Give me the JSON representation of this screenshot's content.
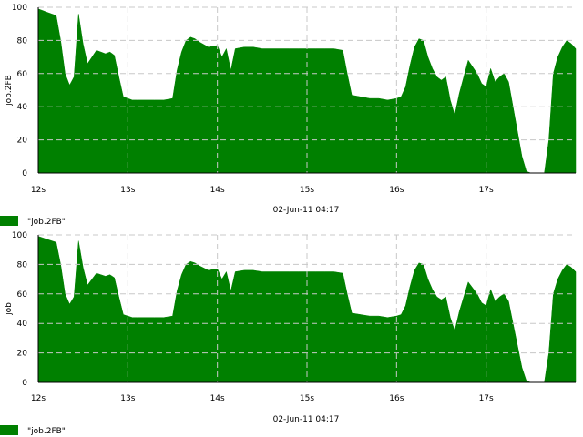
{
  "chart_data": [
    {
      "type": "area",
      "ylabel": "job.2FB",
      "xlabel": "02-Jun-11 04:17",
      "legend": "\"job.2FB\"",
      "legend_placement": "bottom-left",
      "grid": true,
      "color": "#008000",
      "ylim": [
        0,
        100
      ],
      "yticks": [
        "0",
        "20",
        "40",
        "60",
        "80",
        "100"
      ],
      "xlim": [
        12.0,
        18.0
      ],
      "xticks": [
        {
          "x": 12,
          "label": "12s"
        },
        {
          "x": 13,
          "label": "13s"
        },
        {
          "x": 14,
          "label": "14s"
        },
        {
          "x": 15,
          "label": "15s"
        },
        {
          "x": 16,
          "label": "16s"
        },
        {
          "x": 17,
          "label": "17s"
        }
      ],
      "series": [
        {
          "x": [
            12.0,
            12.05,
            12.1,
            12.15,
            12.2,
            12.25,
            12.3,
            12.35,
            12.4,
            12.45,
            12.5,
            12.55,
            12.6,
            12.65,
            12.7,
            12.75,
            12.8,
            12.85,
            12.9,
            12.95,
            13.0,
            13.05,
            13.1,
            13.2,
            13.3,
            13.4,
            13.5,
            13.55,
            13.6,
            13.65,
            13.7,
            13.75,
            13.8,
            13.9,
            14.0,
            14.05,
            14.1,
            14.15,
            14.2,
            14.3,
            14.4,
            14.5,
            14.6,
            14.7,
            14.8,
            14.9,
            15.0,
            15.1,
            15.2,
            15.3,
            15.4,
            15.45,
            15.5,
            15.6,
            15.7,
            15.8,
            15.9,
            16.0,
            16.05,
            16.1,
            16.15,
            16.2,
            16.25,
            16.3,
            16.35,
            16.4,
            16.45,
            16.5,
            16.55,
            16.6,
            16.65,
            16.7,
            16.75,
            16.8,
            16.85,
            16.9,
            16.95,
            17.0,
            17.05,
            17.1,
            17.15,
            17.2,
            17.25,
            17.3,
            17.35,
            17.4,
            17.45,
            17.5,
            17.55,
            17.6,
            17.65,
            17.7,
            17.75,
            17.8,
            17.85,
            17.9,
            17.95,
            18.0
          ],
          "y": [
            99,
            98,
            97,
            96,
            95,
            80,
            60,
            53,
            58,
            96,
            78,
            66,
            70,
            74,
            73,
            72,
            73,
            71,
            58,
            46,
            45,
            44,
            44,
            44,
            44,
            44,
            45,
            62,
            73,
            80,
            82,
            81,
            79,
            76,
            77,
            70,
            75,
            62,
            75,
            76,
            76,
            75,
            75,
            75,
            75,
            75,
            75,
            75,
            75,
            75,
            74,
            60,
            47,
            46,
            45,
            45,
            44,
            45,
            46,
            52,
            65,
            76,
            81,
            80,
            70,
            63,
            58,
            56,
            58,
            44,
            35,
            48,
            58,
            68,
            64,
            60,
            54,
            52,
            63,
            55,
            58,
            60,
            55,
            40,
            25,
            10,
            1,
            0,
            0,
            0,
            0,
            20,
            60,
            70,
            76,
            80,
            78,
            75
          ]
        }
      ]
    },
    {
      "type": "area",
      "ylabel": "job",
      "xlabel": "02-Jun-11 04:17",
      "legend": "\"job.2FB\"",
      "legend_placement": "bottom-left",
      "grid": true,
      "color": "#008000",
      "ylim": [
        0,
        100
      ],
      "yticks": [
        "0",
        "20",
        "40",
        "60",
        "80",
        "100"
      ],
      "xlim": [
        12.0,
        18.0
      ],
      "xticks": [
        {
          "x": 12,
          "label": "12s"
        },
        {
          "x": 13,
          "label": "13s"
        },
        {
          "x": 14,
          "label": "14s"
        },
        {
          "x": 15,
          "label": "15s"
        },
        {
          "x": 16,
          "label": "16s"
        },
        {
          "x": 17,
          "label": "17s"
        }
      ],
      "series": [
        {
          "x": [
            12.0,
            12.05,
            12.1,
            12.15,
            12.2,
            12.25,
            12.3,
            12.35,
            12.4,
            12.45,
            12.5,
            12.55,
            12.6,
            12.65,
            12.7,
            12.75,
            12.8,
            12.85,
            12.9,
            12.95,
            13.0,
            13.05,
            13.1,
            13.2,
            13.3,
            13.4,
            13.5,
            13.55,
            13.6,
            13.65,
            13.7,
            13.75,
            13.8,
            13.9,
            14.0,
            14.05,
            14.1,
            14.15,
            14.2,
            14.3,
            14.4,
            14.5,
            14.6,
            14.7,
            14.8,
            14.9,
            15.0,
            15.1,
            15.2,
            15.3,
            15.4,
            15.45,
            15.5,
            15.6,
            15.7,
            15.8,
            15.9,
            16.0,
            16.05,
            16.1,
            16.15,
            16.2,
            16.25,
            16.3,
            16.35,
            16.4,
            16.45,
            16.5,
            16.55,
            16.6,
            16.65,
            16.7,
            16.75,
            16.8,
            16.85,
            16.9,
            16.95,
            17.0,
            17.05,
            17.1,
            17.15,
            17.2,
            17.25,
            17.3,
            17.35,
            17.4,
            17.45,
            17.5,
            17.55,
            17.6,
            17.65,
            17.7,
            17.75,
            17.8,
            17.85,
            17.9,
            17.95,
            18.0
          ],
          "y": [
            99,
            98,
            97,
            96,
            95,
            80,
            60,
            53,
            58,
            96,
            78,
            66,
            70,
            74,
            73,
            72,
            73,
            71,
            58,
            46,
            45,
            44,
            44,
            44,
            44,
            44,
            45,
            62,
            73,
            80,
            82,
            81,
            79,
            76,
            77,
            70,
            75,
            62,
            75,
            76,
            76,
            75,
            75,
            75,
            75,
            75,
            75,
            75,
            75,
            75,
            74,
            60,
            47,
            46,
            45,
            45,
            44,
            45,
            46,
            52,
            65,
            76,
            81,
            80,
            70,
            63,
            58,
            56,
            58,
            44,
            35,
            48,
            58,
            68,
            64,
            60,
            54,
            52,
            63,
            55,
            58,
            60,
            55,
            40,
            25,
            10,
            1,
            0,
            0,
            0,
            0,
            20,
            60,
            70,
            76,
            80,
            78,
            75
          ]
        }
      ]
    }
  ]
}
